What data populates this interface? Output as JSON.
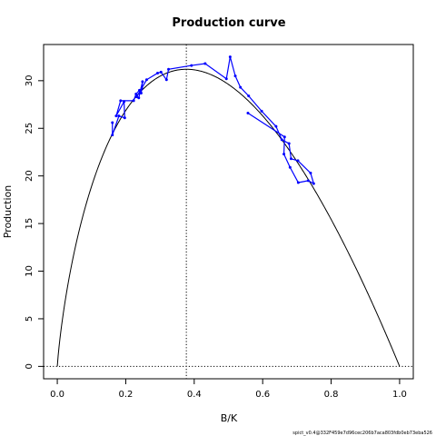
{
  "chart_data": {
    "type": "line",
    "title": "Production curve",
    "xlabel": "B/K",
    "ylabel": "Production",
    "xlim": [
      -0.04,
      1.04
    ],
    "ylim": [
      -1.3,
      33.8
    ],
    "x_ticks": [
      "0.0",
      "0.2",
      "0.4",
      "0.6",
      "0.8",
      "1.0"
    ],
    "x_tick_values": [
      0,
      0.2,
      0.4,
      0.6,
      0.8,
      1.0
    ],
    "y_ticks": [
      "0",
      "5",
      "10",
      "15",
      "20",
      "25",
      "30"
    ],
    "y_tick_values": [
      0,
      5,
      10,
      15,
      20,
      25,
      30
    ],
    "grid": false,
    "legend": false,
    "curve": {
      "name": "",
      "color": "#000000",
      "shape": "Pella-Tomlinson production curve peaking near B/K 0.38",
      "bmsy_over_k": 0.377,
      "msy": 31.2
    },
    "reference_lines": [
      {
        "orientation": "vertical",
        "value": 0.377,
        "style": "dotted",
        "color": "#000000"
      },
      {
        "orientation": "horizontal",
        "value": 0,
        "style": "dotted",
        "color": "#000000"
      }
    ],
    "series": [
      {
        "name": "",
        "color": "#0000ff",
        "x": [
          0.161,
          0.161,
          0.18,
          0.197,
          0.195,
          0.172,
          0.185,
          0.223,
          0.23,
          0.24,
          0.245,
          0.247,
          0.249,
          0.238,
          0.232,
          0.261,
          0.293,
          0.303,
          0.319,
          0.325,
          0.392,
          0.432,
          0.494,
          0.505,
          0.52,
          0.535,
          0.559,
          0.597,
          0.639,
          0.656,
          0.677,
          0.683,
          0.703,
          0.74,
          0.749,
          0.733,
          0.704,
          0.68,
          0.662,
          0.664,
          0.557
        ],
        "y": [
          25.6,
          24.3,
          26.3,
          26.1,
          27.8,
          26.3,
          27.9,
          27.9,
          28.6,
          29.0,
          28.7,
          29.2,
          29.9,
          28.2,
          28.3,
          30.1,
          30.8,
          30.9,
          30.1,
          31.2,
          31.6,
          31.8,
          30.2,
          32.5,
          30.5,
          29.3,
          28.4,
          26.8,
          25.2,
          23.8,
          23.4,
          21.8,
          21.6,
          20.3,
          19.2,
          19.5,
          19.3,
          20.9,
          22.3,
          24.1,
          26.6
        ]
      }
    ]
  },
  "footnote": "spict_v0.4@332F459e7d96cec206b7aca803fdb0eb73eba526"
}
